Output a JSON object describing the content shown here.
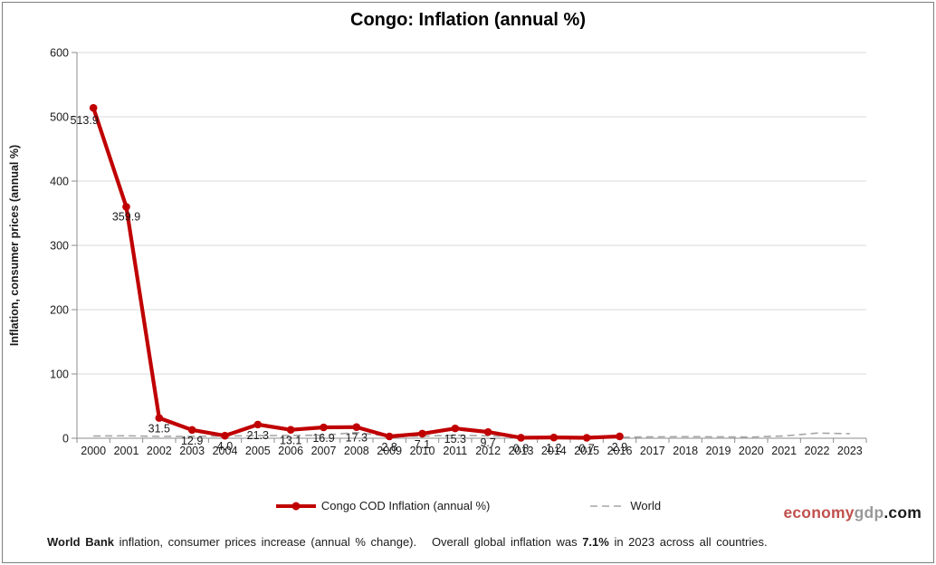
{
  "title": "Congo: Inflation (annual %)",
  "y_axis_title": "Inflation, consumer prices (annual %)",
  "colors": {
    "congo_line": "#c00000",
    "world_line": "#a6a6a6",
    "gridline": "#d9d9d9",
    "axis": "#8c8c8c",
    "text": "#1a1a1a"
  },
  "chart_data": {
    "type": "line",
    "title": "Congo: Inflation (annual %)",
    "ylabel": "Inflation, consumer prices (annual %)",
    "xlabel": "",
    "ylim": [
      0,
      600
    ],
    "y_ticks": [
      0,
      100,
      200,
      300,
      400,
      500,
      600
    ],
    "grid": "horizontal",
    "legend_position": "bottom",
    "categories": [
      "2000",
      "2001",
      "2002",
      "2003",
      "2004",
      "2005",
      "2006",
      "2007",
      "2008",
      "2009",
      "2010",
      "2011",
      "2012",
      "2013",
      "2014",
      "2015",
      "2016",
      "2017",
      "2018",
      "2019",
      "2020",
      "2021",
      "2022",
      "2023"
    ],
    "series": [
      {
        "name": "Congo COD Inflation (annual %)",
        "style": "solid-with-markers",
        "values": [
          513.9,
          359.9,
          31.5,
          12.9,
          4.0,
          21.3,
          13.1,
          16.9,
          17.3,
          2.8,
          7.1,
          15.3,
          9.7,
          0.8,
          1.2,
          0.7,
          2.9,
          null,
          null,
          null,
          null,
          null,
          null,
          null
        ],
        "point_labels": [
          "513.9",
          "359.9",
          "31.5",
          "12.9",
          "4.0",
          "21.3",
          "13.1",
          "16.9",
          "17.3",
          "2.8",
          "7.1",
          "15.3",
          "9.7",
          "0.8",
          "1.2",
          "0.7",
          "2.9"
        ]
      },
      {
        "name": "World",
        "style": "dashed",
        "values": [
          3.4,
          3.8,
          2.8,
          3.0,
          3.4,
          4.1,
          4.3,
          4.8,
          8.9,
          2.9,
          3.3,
          4.8,
          3.7,
          2.6,
          2.3,
          1.4,
          1.5,
          2.2,
          2.4,
          2.2,
          1.9,
          3.5,
          8.0,
          7.1
        ]
      }
    ]
  },
  "legend": {
    "congo_label": "Congo COD Inflation (annual %)",
    "world_label": "World"
  },
  "logo": {
    "parts": [
      {
        "text": "economy",
        "color": "#c0504d"
      },
      {
        "text": "gdp",
        "color": "#999999"
      },
      {
        "text": ".com",
        "color": "#1a1a1a"
      }
    ]
  },
  "footer": {
    "caption": [
      {
        "text": "World Bank",
        "bold": true
      },
      {
        "text": " inflation, consumer prices increase (annual % change).   Overall global inflation was ",
        "bold": false
      },
      {
        "text": "7.1%",
        "bold": true
      },
      {
        "text": " in 2023 across all countries.",
        "bold": false
      }
    ]
  }
}
